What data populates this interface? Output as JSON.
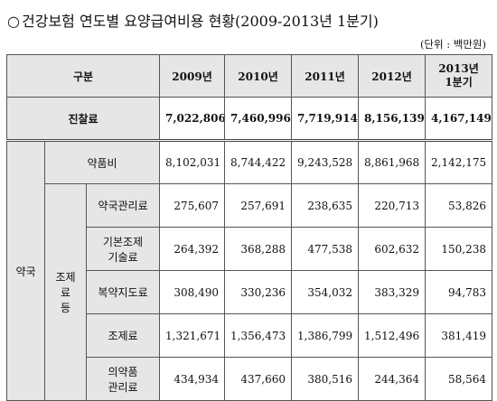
{
  "title": {
    "bullet": "○",
    "text": "건강보험 연도별 요양급여비용 현황(2009-2013년 1분기)"
  },
  "unit": "(단위 : 백만원)",
  "table": {
    "header": {
      "category": "구분",
      "years": [
        "2009년",
        "2010년",
        "2011년",
        "2012년"
      ],
      "last_year_line1": "2013년",
      "last_year_line2": "1분기"
    },
    "total": {
      "label": "진찰료",
      "values": [
        "7,022,806",
        "7,460,996",
        "7,719,914",
        "8,156,139",
        "4,167,149"
      ]
    },
    "pharmacy_label": "약국",
    "drug_cost": {
      "label": "약품비",
      "values": [
        "8,102,031",
        "8,744,422",
        "9,243,528",
        "8,861,968",
        "2,142,175"
      ]
    },
    "dispensing_group_label_line1": "조제료",
    "dispensing_group_label_line2": "등",
    "rows": [
      {
        "label_line1": "약국관리료",
        "label_line2": "",
        "values": [
          "275,607",
          "257,691",
          "238,635",
          "220,713",
          "53,826"
        ]
      },
      {
        "label_line1": "기본조제",
        "label_line2": "기술료",
        "values": [
          "264,392",
          "368,288",
          "477,538",
          "602,632",
          "150,238"
        ]
      },
      {
        "label_line1": "복약지도료",
        "label_line2": "",
        "values": [
          "308,490",
          "330,236",
          "354,032",
          "383,329",
          "94,783"
        ]
      },
      {
        "label_line1": "조제료",
        "label_line2": "",
        "values": [
          "1,321,671",
          "1,356,473",
          "1,386,799",
          "1,512,496",
          "381,419"
        ]
      },
      {
        "label_line1": "의약품",
        "label_line2": "관리료",
        "values": [
          "434,934",
          "437,660",
          "380,516",
          "244,364",
          "58,564"
        ]
      }
    ]
  }
}
